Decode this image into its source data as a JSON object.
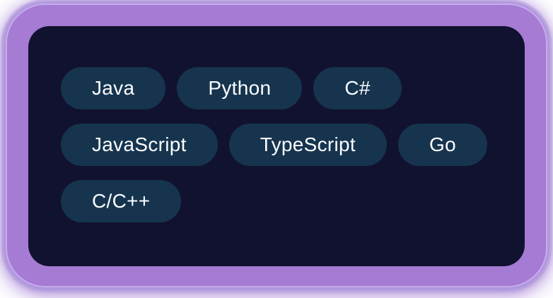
{
  "card": {
    "tags": [
      {
        "label": "Java"
      },
      {
        "label": "Python"
      },
      {
        "label": "C#"
      },
      {
        "label": "JavaScript"
      },
      {
        "label": "TypeScript"
      },
      {
        "label": "Go"
      },
      {
        "label": "C/C++"
      }
    ]
  },
  "colors": {
    "frame_purple": "#a57bd3",
    "glow_lavender": "#c8ace4",
    "panel_navy": "#11122f",
    "pill_teal_navy": "#16344e",
    "pill_text": "#fbfcff",
    "page_background": "#ffffff"
  }
}
